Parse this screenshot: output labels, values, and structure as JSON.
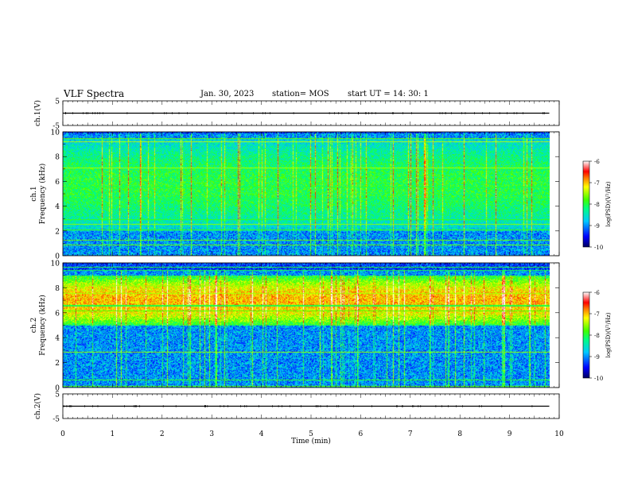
{
  "header": {
    "title": "VLF Spectra",
    "date": "Jan. 30, 2023",
    "station": "station= MOS",
    "start": "start  UT =   14: 30: 1"
  },
  "chart_data": [
    {
      "type": "line",
      "id": "ch1-waveform",
      "ylabel": "ch.1(V)",
      "ylim": [
        -5,
        5
      ],
      "ytick_labels": [
        "5",
        "-5"
      ],
      "series": [
        {
          "x": [
            0,
            9.8
          ],
          "values": [
            0,
            0
          ]
        }
      ]
    },
    {
      "type": "heatmap",
      "id": "ch1-spectrogram",
      "ylabel": "ch.1\nFrequency (kHz)",
      "ylim": [
        0,
        10
      ],
      "ytick_labels": [
        "0",
        "2",
        "4",
        "6",
        "8",
        "10"
      ],
      "xlim": [
        0,
        10
      ],
      "data_extent_min": 9.8,
      "colorbar": {
        "label": "log(PSD)(V²/Hz)",
        "range": [
          -10,
          -6
        ],
        "tick_labels": [
          "-6",
          "-7",
          "-8",
          "-9",
          "-10"
        ]
      },
      "dominant_band_khz": [
        2,
        9.5
      ],
      "band_peak_log_psd": -8.0
    },
    {
      "type": "heatmap",
      "id": "ch2-spectrogram",
      "ylabel": "ch.2\nFrequency (kHz)",
      "ylim": [
        0,
        10
      ],
      "ytick_labels": [
        "0",
        "2",
        "4",
        "6",
        "8",
        "10"
      ],
      "xlim": [
        0,
        10
      ],
      "data_extent_min": 9.8,
      "colorbar": {
        "label": "log(PSD)(V²/Hz)",
        "range": [
          -10,
          -6
        ],
        "tick_labels": [
          "-6",
          "-7",
          "-8",
          "-9",
          "-10"
        ]
      },
      "dominant_band_khz": [
        5,
        9
      ],
      "band_peak_log_psd": -7.0
    },
    {
      "type": "line",
      "id": "ch2-waveform",
      "ylabel": "ch.2(V)",
      "ylim": [
        -5,
        5
      ],
      "ytick_labels": [
        "5",
        "-5"
      ],
      "xlabel": "Time (min)",
      "xlim": [
        0,
        10
      ],
      "xtick_labels": [
        "0",
        "1",
        "2",
        "3",
        "4",
        "5",
        "6",
        "7",
        "8",
        "9",
        "10"
      ],
      "series": [
        {
          "x": [
            0,
            9.8
          ],
          "values": [
            0,
            0
          ]
        }
      ]
    }
  ]
}
